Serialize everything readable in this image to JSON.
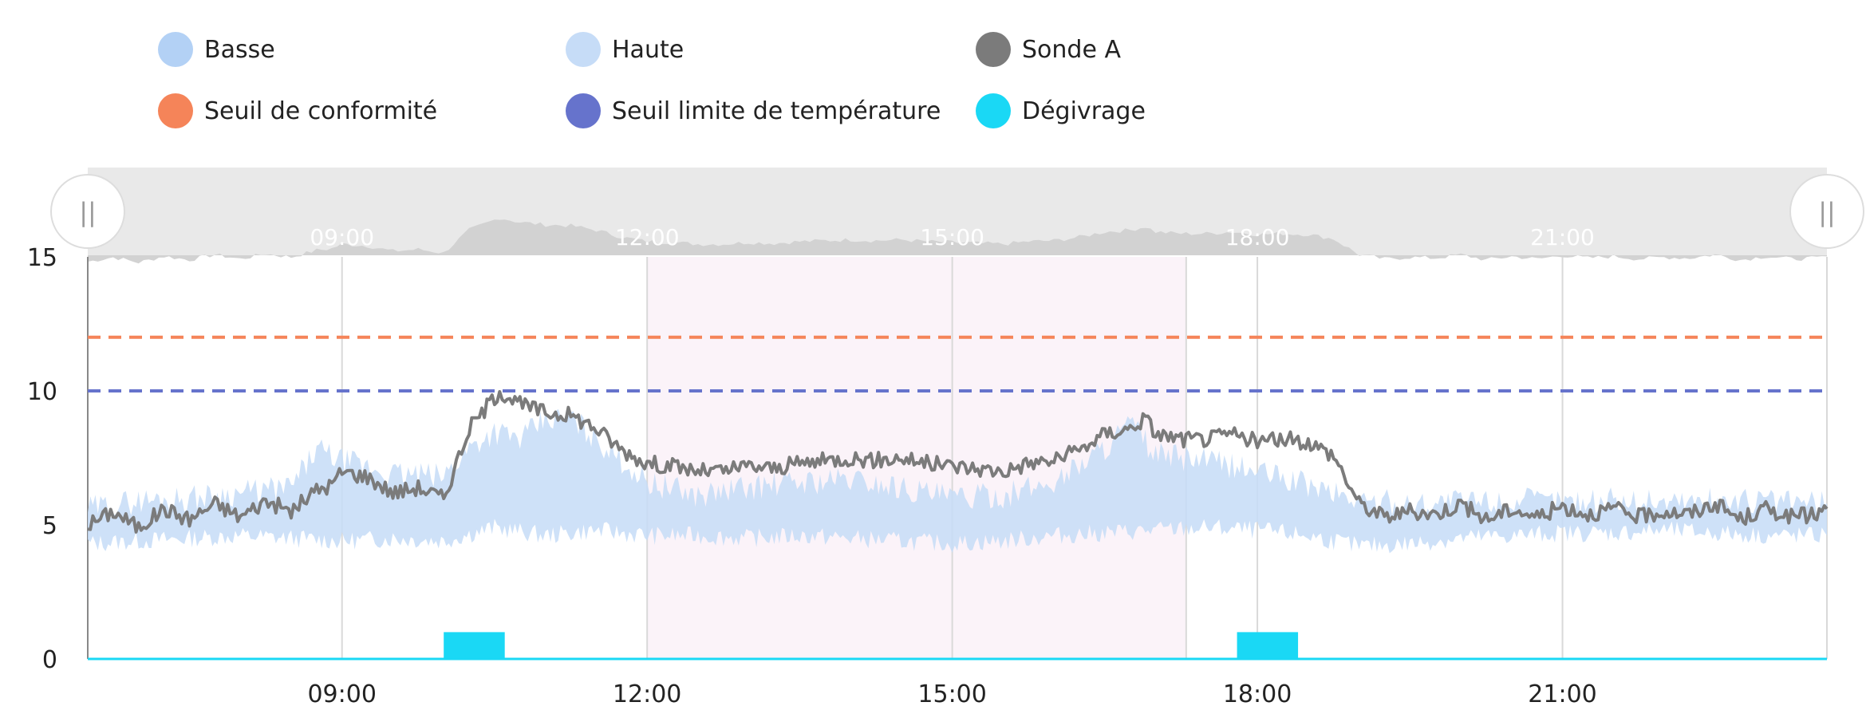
{
  "legend": {
    "items": [
      {
        "label": "Basse",
        "color": "#b3d1f5"
      },
      {
        "label": "Haute",
        "color": "#c6dcf7"
      },
      {
        "label": "Sonde A",
        "color": "#7b7b7b"
      },
      {
        "label": "Seuil de conformité",
        "color": "#f58459"
      },
      {
        "label": "Seuil limite de température",
        "color": "#6673cc"
      },
      {
        "label": "Dégivrage",
        "color": "#1ad8f5"
      }
    ]
  },
  "navigator": {
    "x_ticks": [
      "09:00",
      "12:00",
      "15:00",
      "18:00",
      "21:00"
    ],
    "handle_glyph": "||"
  },
  "chart_data": {
    "type": "line",
    "x_unit": "hour of day",
    "xlim": [
      6.5,
      23.6
    ],
    "ylim": [
      0,
      15
    ],
    "y_ticks": [
      0,
      5,
      10,
      15
    ],
    "x_ticks": [
      "09:00",
      "12:00",
      "15:00",
      "18:00",
      "21:00"
    ],
    "grid": true,
    "legend_position": "top",
    "highlight_band": [
      12.0,
      17.3
    ],
    "thresholds": [
      {
        "name": "Seuil de conformité",
        "value": 12,
        "color": "#f58459"
      },
      {
        "name": "Seuil limite de température",
        "value": 10,
        "color": "#6673cc"
      }
    ],
    "series": [
      {
        "name": "Sonde A",
        "color": "#7b7b7b",
        "points": [
          [
            6.5,
            5.0
          ],
          [
            6.75,
            5.5
          ],
          [
            7.0,
            4.9
          ],
          [
            7.25,
            5.6
          ],
          [
            7.5,
            5.2
          ],
          [
            7.75,
            5.8
          ],
          [
            8.0,
            5.3
          ],
          [
            8.25,
            5.9
          ],
          [
            8.5,
            5.5
          ],
          [
            8.75,
            6.3
          ],
          [
            8.9,
            6.5
          ],
          [
            9.0,
            7.0
          ],
          [
            9.25,
            6.8
          ],
          [
            9.5,
            6.2
          ],
          [
            9.75,
            6.4
          ],
          [
            10.0,
            6.0
          ],
          [
            10.25,
            8.6
          ],
          [
            10.4,
            9.3
          ],
          [
            10.55,
            10.0
          ],
          [
            10.75,
            9.5
          ],
          [
            11.0,
            9.2
          ],
          [
            11.25,
            9.1
          ],
          [
            11.5,
            8.6
          ],
          [
            11.75,
            7.8
          ],
          [
            12.0,
            7.3
          ],
          [
            12.25,
            7.2
          ],
          [
            12.5,
            7.0
          ],
          [
            12.75,
            7.0
          ],
          [
            13.0,
            7.2
          ],
          [
            13.25,
            7.1
          ],
          [
            13.5,
            7.3
          ],
          [
            13.75,
            7.4
          ],
          [
            14.0,
            7.5
          ],
          [
            14.25,
            7.4
          ],
          [
            14.5,
            7.5
          ],
          [
            14.75,
            7.3
          ],
          [
            15.0,
            7.2
          ],
          [
            15.25,
            7.1
          ],
          [
            15.5,
            7.0
          ],
          [
            15.75,
            7.3
          ],
          [
            16.0,
            7.4
          ],
          [
            16.25,
            7.8
          ],
          [
            16.5,
            8.4
          ],
          [
            16.75,
            8.6
          ],
          [
            16.9,
            9.0
          ],
          [
            17.0,
            8.4
          ],
          [
            17.25,
            8.2
          ],
          [
            17.5,
            8.2
          ],
          [
            17.75,
            8.4
          ],
          [
            18.0,
            8.1
          ],
          [
            18.25,
            8.2
          ],
          [
            18.5,
            8.1
          ],
          [
            18.75,
            7.6
          ],
          [
            19.0,
            5.8
          ],
          [
            19.25,
            5.3
          ],
          [
            19.5,
            5.5
          ],
          [
            19.75,
            5.4
          ],
          [
            20.0,
            5.8
          ],
          [
            20.25,
            5.2
          ],
          [
            20.5,
            5.6
          ],
          [
            20.75,
            5.3
          ],
          [
            21.0,
            5.7
          ],
          [
            21.25,
            5.4
          ],
          [
            21.5,
            5.6
          ],
          [
            21.75,
            5.3
          ],
          [
            22.0,
            5.5
          ],
          [
            22.25,
            5.4
          ],
          [
            22.5,
            5.8
          ],
          [
            22.75,
            5.2
          ],
          [
            23.0,
            5.6
          ],
          [
            23.25,
            5.3
          ],
          [
            23.5,
            5.4
          ],
          [
            23.6,
            5.6
          ]
        ]
      },
      {
        "name": "Basse",
        "color": "#b3d1f5",
        "points": [
          [
            6.5,
            4.3
          ],
          [
            7.0,
            4.4
          ],
          [
            7.5,
            4.5
          ],
          [
            8.0,
            4.6
          ],
          [
            8.5,
            4.5
          ],
          [
            9.0,
            4.4
          ],
          [
            9.5,
            4.5
          ],
          [
            10.0,
            4.4
          ],
          [
            10.5,
            4.9
          ],
          [
            11.0,
            4.6
          ],
          [
            11.5,
            4.8
          ],
          [
            12.0,
            4.6
          ],
          [
            12.5,
            4.6
          ],
          [
            13.0,
            4.5
          ],
          [
            13.5,
            4.6
          ],
          [
            14.0,
            4.5
          ],
          [
            14.5,
            4.4
          ],
          [
            15.0,
            4.3
          ],
          [
            15.5,
            4.4
          ],
          [
            16.0,
            4.6
          ],
          [
            16.5,
            4.7
          ],
          [
            17.0,
            4.8
          ],
          [
            17.5,
            4.9
          ],
          [
            18.0,
            4.8
          ],
          [
            18.5,
            4.6
          ],
          [
            19.0,
            4.2
          ],
          [
            19.5,
            4.3
          ],
          [
            20.0,
            4.5
          ],
          [
            20.5,
            4.6
          ],
          [
            21.0,
            4.7
          ],
          [
            21.5,
            4.7
          ],
          [
            22.0,
            4.8
          ],
          [
            22.5,
            4.7
          ],
          [
            23.0,
            4.6
          ],
          [
            23.6,
            4.6
          ]
        ]
      },
      {
        "name": "Haute",
        "color": "#c6dcf7",
        "points": [
          [
            6.5,
            5.6
          ],
          [
            7.0,
            5.9
          ],
          [
            7.5,
            6.0
          ],
          [
            8.0,
            6.2
          ],
          [
            8.5,
            6.4
          ],
          [
            8.75,
            7.8
          ],
          [
            9.0,
            7.4
          ],
          [
            9.5,
            6.9
          ],
          [
            10.0,
            6.8
          ],
          [
            10.25,
            7.9
          ],
          [
            10.5,
            8.5
          ],
          [
            10.75,
            8.2
          ],
          [
            11.0,
            8.9
          ],
          [
            11.25,
            9.0
          ],
          [
            11.5,
            8.2
          ],
          [
            12.0,
            6.6
          ],
          [
            12.5,
            6.1
          ],
          [
            13.0,
            6.4
          ],
          [
            13.5,
            6.6
          ],
          [
            14.0,
            6.7
          ],
          [
            14.5,
            6.4
          ],
          [
            15.0,
            6.0
          ],
          [
            15.5,
            6.1
          ],
          [
            16.0,
            6.6
          ],
          [
            16.5,
            7.9
          ],
          [
            16.75,
            8.8
          ],
          [
            17.0,
            7.6
          ],
          [
            17.5,
            7.4
          ],
          [
            18.0,
            7.0
          ],
          [
            18.5,
            6.5
          ],
          [
            19.0,
            5.9
          ],
          [
            19.5,
            5.8
          ],
          [
            20.0,
            5.9
          ],
          [
            20.5,
            5.9
          ],
          [
            21.0,
            5.9
          ],
          [
            21.5,
            5.9
          ],
          [
            22.0,
            5.9
          ],
          [
            22.5,
            5.9
          ],
          [
            23.0,
            5.9
          ],
          [
            23.6,
            5.8
          ]
        ]
      }
    ],
    "defrost": {
      "name": "Dégivrage",
      "color": "#1ad8f5",
      "segments": [
        {
          "start": 10.0,
          "end": 10.6,
          "value": 1.0
        },
        {
          "start": 17.8,
          "end": 18.4,
          "value": 1.0
        }
      ]
    }
  }
}
